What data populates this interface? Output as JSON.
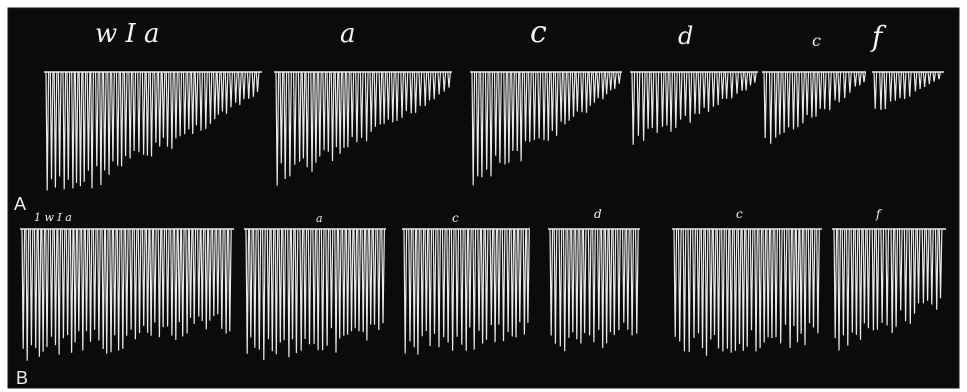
{
  "figure": {
    "panels": [
      {
        "letter": "A",
        "segment_labels": [
          "w I a",
          "a",
          "c",
          "d",
          "c",
          "f"
        ]
      },
      {
        "letter": "B",
        "segment_labels": [
          "1  w I a",
          "a",
          "c",
          "d",
          "c",
          "f"
        ]
      }
    ],
    "colors": {
      "background": "#0b0b0b",
      "trace": "#e9e9e9",
      "label": "#f2f2f2",
      "frame": "#ffffff"
    }
  }
}
